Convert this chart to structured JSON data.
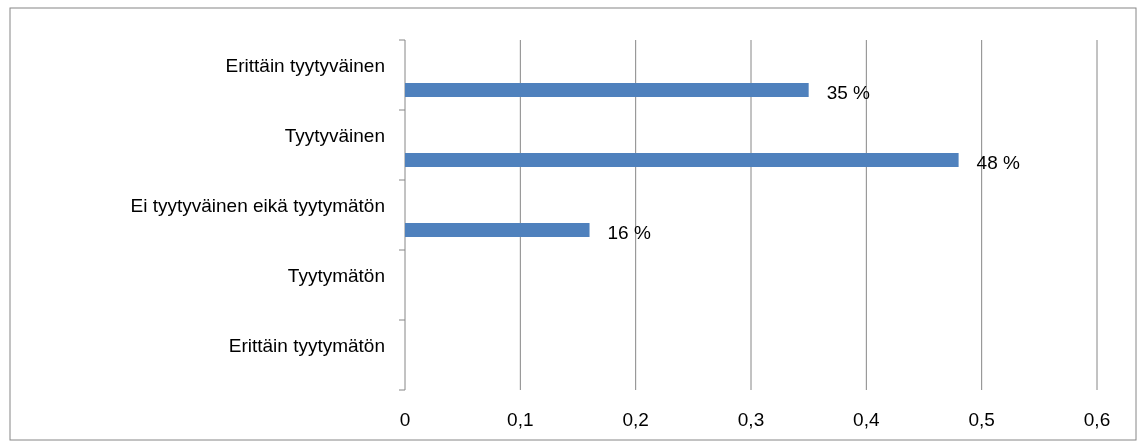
{
  "chart_data": {
    "type": "bar",
    "orientation": "horizontal",
    "categories": [
      "Erittäin tyytyväinen",
      "Tyytyväinen",
      "Ei tyytyväinen eikä tyytymätön",
      "Tyytymätön",
      "Erittäin tyytymätön"
    ],
    "values": [
      0.35,
      0.48,
      0.16,
      null,
      null
    ],
    "value_labels": [
      "35 %",
      "48 %",
      "16 %",
      null,
      null
    ],
    "color": "#4f81bd",
    "xlim": [
      0,
      0.6
    ],
    "xticks": [
      0,
      {
        "value": 0.1,
        "label": "0,1"
      },
      {
        "value": 0.2,
        "label": "0,2"
      },
      {
        "value": 0.3,
        "label": "0,3"
      },
      {
        "value": 0.4,
        "label": "0,4"
      },
      {
        "value": 0.5,
        "label": "0,5"
      },
      {
        "value": 0.6,
        "label": "0,6"
      }
    ],
    "grid": "x"
  }
}
